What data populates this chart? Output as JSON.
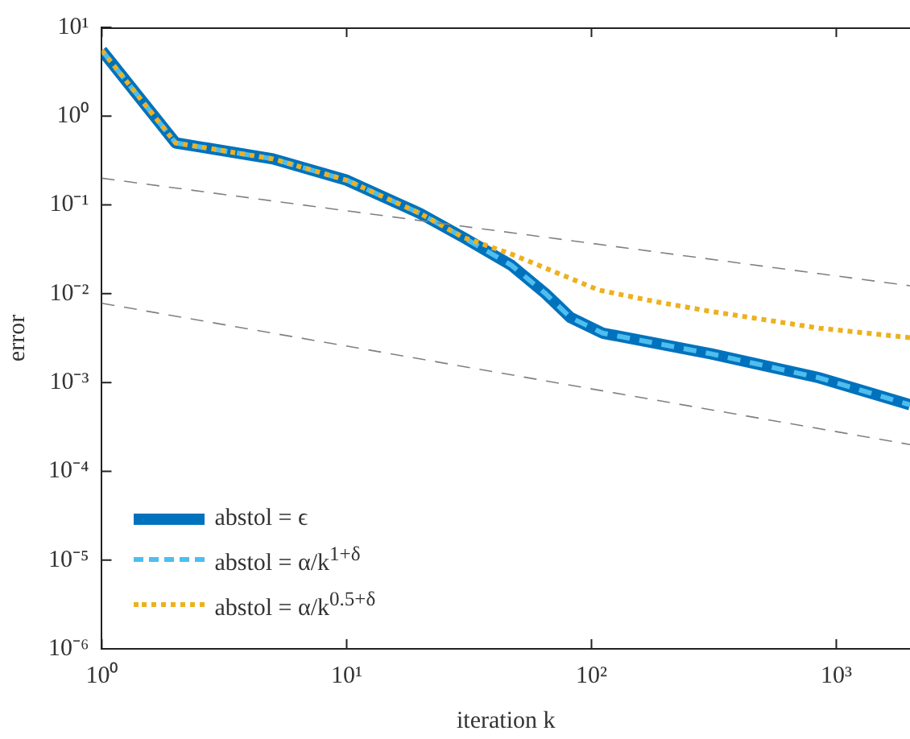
{
  "chart_data": {
    "type": "line",
    "xlabel": "iteration k",
    "ylabel": "error",
    "log": "xy",
    "grid": false,
    "legend": "bottom left",
    "marker": "none",
    "xlim": [
      1,
      2000
    ],
    "ylim": [
      1e-06,
      10
    ],
    "xticks": [
      {
        "value": 1,
        "label": "10⁰"
      },
      {
        "value": 10,
        "label": "10¹"
      },
      {
        "value": 100,
        "label": "10²"
      },
      {
        "value": 1000,
        "label": "10³"
      }
    ],
    "yticks": [
      {
        "value": 1e-06,
        "label": "10⁻⁶"
      },
      {
        "value": 1e-05,
        "label": "10⁻⁵"
      },
      {
        "value": 0.0001,
        "label": "10⁻⁴"
      },
      {
        "value": 0.001,
        "label": "10⁻³"
      },
      {
        "value": 0.01,
        "label": "10⁻²"
      },
      {
        "value": 0.1,
        "label": "10⁻¹"
      },
      {
        "value": 1,
        "label": "10⁰"
      },
      {
        "value": 10,
        "label": "10¹"
      }
    ],
    "series": [
      {
        "name": "abstol = ϵ",
        "color": "#0072bd",
        "line_style": "solid",
        "x": [
          1,
          2,
          5,
          10,
          20,
          30,
          47,
          65,
          82,
          111,
          309,
          850,
          2000
        ],
        "values": [
          5.5,
          0.5,
          0.33,
          0.19,
          0.08,
          0.043,
          0.021,
          0.01,
          0.0054,
          0.0036,
          0.0021,
          0.00113,
          0.00056
        ]
      },
      {
        "name": "abstol = α/k$^{1+δ}$",
        "color": "#4dbeee",
        "line_style": "dashed",
        "x": [
          1,
          2,
          5,
          10,
          20,
          30,
          47,
          65,
          82,
          111,
          309,
          850,
          2000
        ],
        "values": [
          5.5,
          0.5,
          0.33,
          0.19,
          0.08,
          0.043,
          0.021,
          0.01,
          0.0054,
          0.0036,
          0.0021,
          0.00113,
          0.00056
        ]
      },
      {
        "name": "abstol = α/k$^{0.5+δ}$",
        "color": "#edb120",
        "line_style": "dotted",
        "x": [
          1,
          2,
          5,
          10,
          20,
          30,
          47,
          107,
          184,
          309,
          850,
          2000
        ],
        "values": [
          5.5,
          0.5,
          0.33,
          0.19,
          0.08,
          0.043,
          0.028,
          0.011,
          0.0081,
          0.0063,
          0.0041,
          0.0032
        ]
      },
      {
        "type": "line",
        "color": "#808080",
        "line_style": "dashed",
        "x": [
          1,
          2000
        ],
        "values": [
          0.2,
          0.0123
        ]
      },
      {
        "type": "line",
        "color": "#808080",
        "line_style": "dashed",
        "x": [
          1,
          2000
        ],
        "values": [
          0.0078,
          0.0002
        ]
      }
    ]
  }
}
